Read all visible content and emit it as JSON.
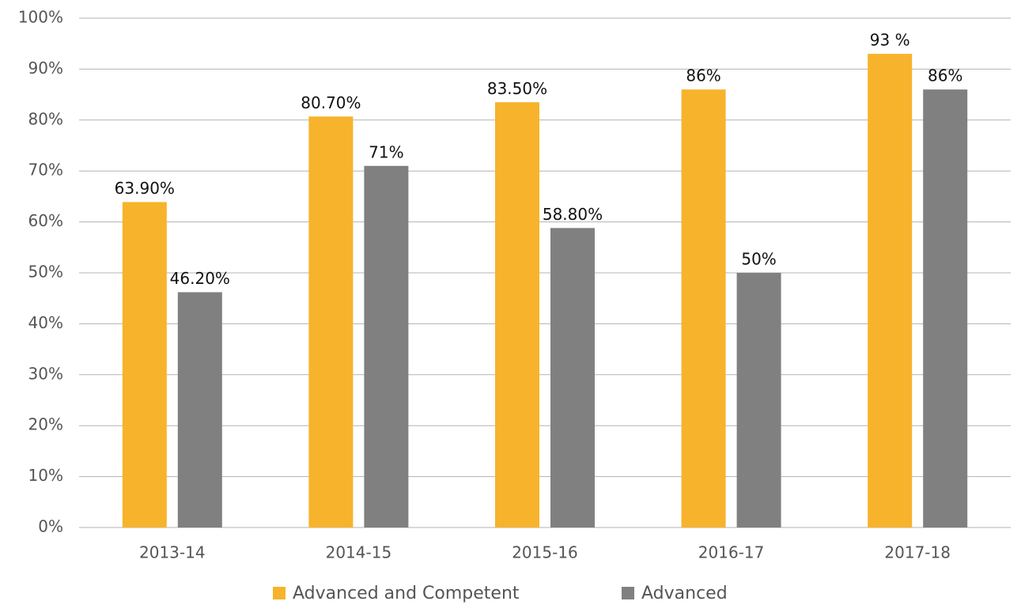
{
  "chart_data": {
    "type": "bar",
    "categories": [
      "2013-14",
      "2014-15",
      "2015-16",
      "2016-17",
      "2017-18"
    ],
    "series": [
      {
        "name": "Advanced and Competent",
        "color": "#f7b32b",
        "values": [
          63.9,
          80.7,
          83.5,
          86,
          93
        ],
        "value_labels": [
          "63.90%",
          "80.70%",
          "83.50%",
          "86%",
          "93 %"
        ]
      },
      {
        "name": "Advanced",
        "color": "#808080",
        "values": [
          46.2,
          71,
          58.8,
          50,
          86
        ],
        "value_labels": [
          "46.20%",
          "71%",
          "58.80%",
          "50%",
          "86%"
        ]
      }
    ],
    "ylim": [
      0,
      100
    ],
    "yticks": [
      {
        "value": 0,
        "label": "0%"
      },
      {
        "value": 10,
        "label": "10%"
      },
      {
        "value": 20,
        "label": "20%"
      },
      {
        "value": 30,
        "label": "30%"
      },
      {
        "value": 40,
        "label": "40%"
      },
      {
        "value": 50,
        "label": "50%"
      },
      {
        "value": 60,
        "label": "60%"
      },
      {
        "value": 70,
        "label": "70%"
      },
      {
        "value": 80,
        "label": "80%"
      },
      {
        "value": 90,
        "label": "90%"
      },
      {
        "value": 100,
        "label": "100%"
      }
    ],
    "grid": true,
    "legend": "bottom"
  }
}
